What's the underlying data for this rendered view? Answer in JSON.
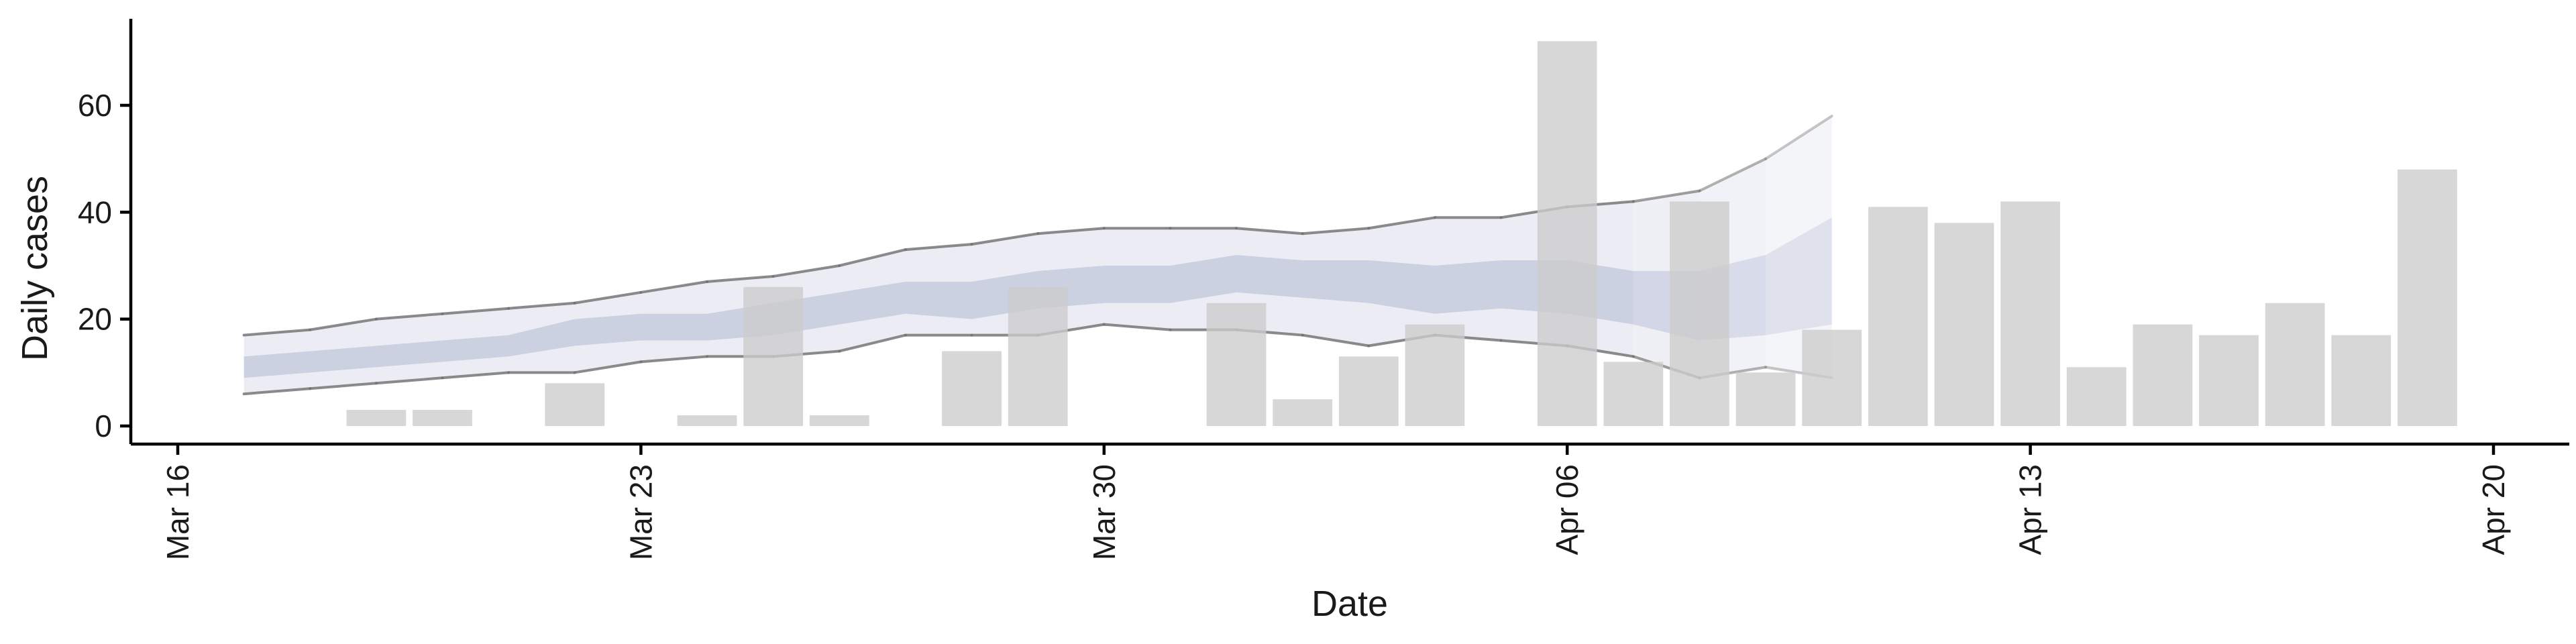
{
  "chart_data": {
    "type": "bar",
    "xlabel": "Date",
    "ylabel": "Daily cases",
    "xlim": [
      "2020-03-16",
      "2020-04-20"
    ],
    "ylim": [
      -3,
      76
    ],
    "yticks": [
      0,
      20,
      40,
      60
    ],
    "xticks": [
      {
        "date": "2020-03-16",
        "label": "Mar 16"
      },
      {
        "date": "2020-03-23",
        "label": "Mar 23"
      },
      {
        "date": "2020-03-30",
        "label": "Mar 30"
      },
      {
        "date": "2020-04-06",
        "label": "Apr 06"
      },
      {
        "date": "2020-04-13",
        "label": "Apr 13"
      },
      {
        "date": "2020-04-20",
        "label": "Apr 20"
      }
    ],
    "grid": false,
    "legend": "none",
    "bars": {
      "color": "#cccccc",
      "dates": [
        "2020-03-19",
        "2020-03-20",
        "2020-03-22",
        "2020-03-24",
        "2020-03-25",
        "2020-03-26",
        "2020-03-28",
        "2020-03-29",
        "2020-04-01",
        "2020-04-02",
        "2020-04-03",
        "2020-04-04",
        "2020-04-06",
        "2020-04-07",
        "2020-04-08",
        "2020-04-09",
        "2020-04-10",
        "2020-04-11",
        "2020-04-12",
        "2020-04-13",
        "2020-04-14",
        "2020-04-15",
        "2020-04-16",
        "2020-04-17",
        "2020-04-18",
        "2020-04-19"
      ],
      "values": [
        3,
        3,
        8,
        2,
        26,
        2,
        14,
        26,
        23,
        5,
        13,
        19,
        72,
        12,
        42,
        10,
        18,
        41,
        38,
        42,
        11,
        19,
        17,
        23,
        17,
        48
      ]
    },
    "estimate": {
      "color": "#b3b9d4",
      "dates": [
        "2020-03-17",
        "2020-03-18",
        "2020-03-19",
        "2020-03-20",
        "2020-03-21",
        "2020-03-22",
        "2020-03-23",
        "2020-03-24",
        "2020-03-25",
        "2020-03-26",
        "2020-03-27",
        "2020-03-28",
        "2020-03-29",
        "2020-03-30",
        "2020-03-31",
        "2020-04-01",
        "2020-04-02",
        "2020-04-03",
        "2020-04-04",
        "2020-04-05",
        "2020-04-06",
        "2020-04-07",
        "2020-04-08",
        "2020-04-09",
        "2020-04-10"
      ],
      "lower_90": [
        6,
        7,
        8,
        9,
        10,
        10,
        12,
        13,
        13,
        14,
        17,
        17,
        17,
        19,
        18,
        18,
        17,
        15,
        17,
        16,
        15,
        13,
        9,
        11,
        9
      ],
      "upper_90": [
        17,
        18,
        20,
        21,
        22,
        23,
        25,
        27,
        28,
        30,
        33,
        34,
        36,
        37,
        37,
        37,
        36,
        37,
        39,
        39,
        41,
        42,
        44,
        50,
        58
      ],
      "lower_50": [
        9,
        10,
        11,
        12,
        13,
        15,
        16,
        16,
        17,
        19,
        21,
        20,
        22,
        23,
        23,
        25,
        24,
        23,
        21,
        22,
        21,
        19,
        16,
        17,
        19
      ],
      "upper_50": [
        13,
        14,
        15,
        16,
        17,
        20,
        21,
        21,
        23,
        25,
        27,
        27,
        29,
        30,
        30,
        32,
        31,
        31,
        30,
        31,
        31,
        29,
        29,
        32,
        39
      ],
      "forecast_from": "2020-04-06"
    }
  }
}
